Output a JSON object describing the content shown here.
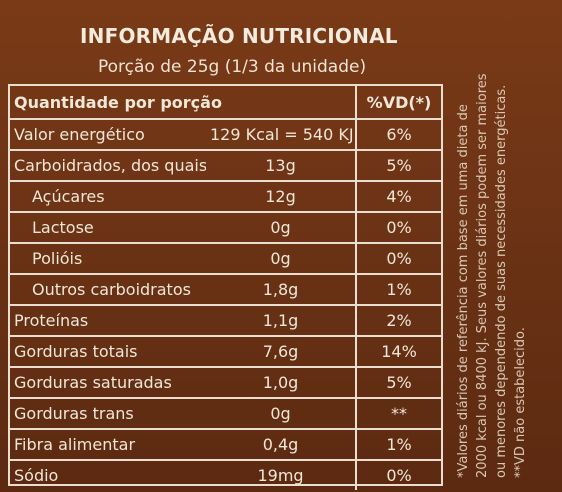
{
  "label": {
    "title": "INFORMAÇÃO NUTRICIONAL",
    "serving": "Porção de 25g (1/3 da unidade)",
    "header": {
      "quantity": "Quantidade por porção",
      "vd": "%VD(*)"
    },
    "rows": [
      {
        "name": "Valor energético",
        "qty": "129 Kcal = 540 KJ",
        "vd": "6%",
        "indent": false
      },
      {
        "name": "Carboidrados, dos quais",
        "qty": "13g",
        "vd": "5%",
        "indent": false
      },
      {
        "name": "Açúcares",
        "qty": "12g",
        "vd": "4%",
        "indent": true
      },
      {
        "name": "Lactose",
        "qty": "0g",
        "vd": "0%",
        "indent": true
      },
      {
        "name": "Polióis",
        "qty": "0g",
        "vd": "0%",
        "indent": true
      },
      {
        "name": "Outros carboidratos",
        "qty": "1,8g",
        "vd": "1%",
        "indent": true
      },
      {
        "name": "Proteínas",
        "qty": "1,1g",
        "vd": "2%",
        "indent": false
      },
      {
        "name": "Gorduras totais",
        "qty": "7,6g",
        "vd": "14%",
        "indent": false
      },
      {
        "name": "Gorduras saturadas",
        "qty": "1,0g",
        "vd": "5%",
        "indent": false
      },
      {
        "name": "Gorduras trans",
        "qty": "0g",
        "vd": "**",
        "indent": false
      },
      {
        "name": "Fibra alimentar",
        "qty": "0,4g",
        "vd": "1%",
        "indent": false
      },
      {
        "name": "Sódio",
        "qty": "19mg",
        "vd": "0%",
        "indent": false
      }
    ],
    "footnote": "*Valores diários de referência com base em uma dieta de 2000 kcal ou 8400 kJ. Seus valores diários podem ser maiores ou menores dependendo de suas necessidades energéticas. **VD não estabelecido."
  },
  "colors": {
    "background": "#6c3315",
    "text": "#f1e7d8",
    "rule": "#e9dfd0"
  }
}
